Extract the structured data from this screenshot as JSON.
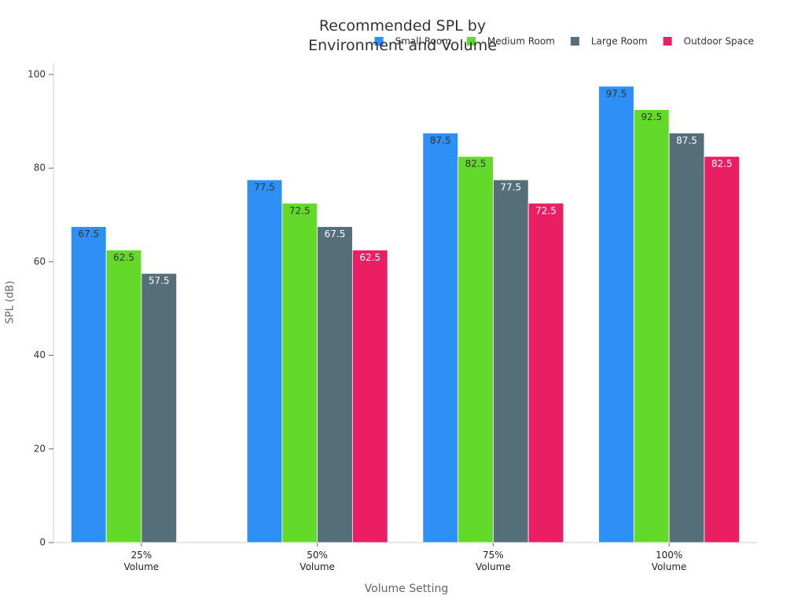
{
  "chart_data": {
    "type": "bar",
    "title": "Recommended SPL by\nEnvironment and Volume",
    "x_label": "Volume Setting",
    "y_label": "SPL (dB)",
    "categories": [
      "25%\nVolume",
      "50%\nVolume",
      "75%\nVolume",
      "100%\nVolume"
    ],
    "series": [
      {
        "name": "Small Room",
        "color": "#2e8ff5",
        "values": [
          67.5,
          77.5,
          87.5,
          97.5
        ]
      },
      {
        "name": "Medium Room",
        "color": "#63d92a",
        "values": [
          62.5,
          72.5,
          82.5,
          92.5
        ]
      },
      {
        "name": "Large Room",
        "color": "#546e7a",
        "values": [
          57.5,
          67.5,
          77.5,
          87.5
        ]
      },
      {
        "name": "Outdoor Space",
        "color": "#e91e63",
        "values": [
          null,
          62.5,
          72.5,
          82.5
        ]
      }
    ],
    "ylim": [
      0,
      102.5
    ],
    "yticks": [
      0,
      20,
      40,
      60,
      80,
      100
    ],
    "grid": false,
    "legend": "top-right"
  }
}
